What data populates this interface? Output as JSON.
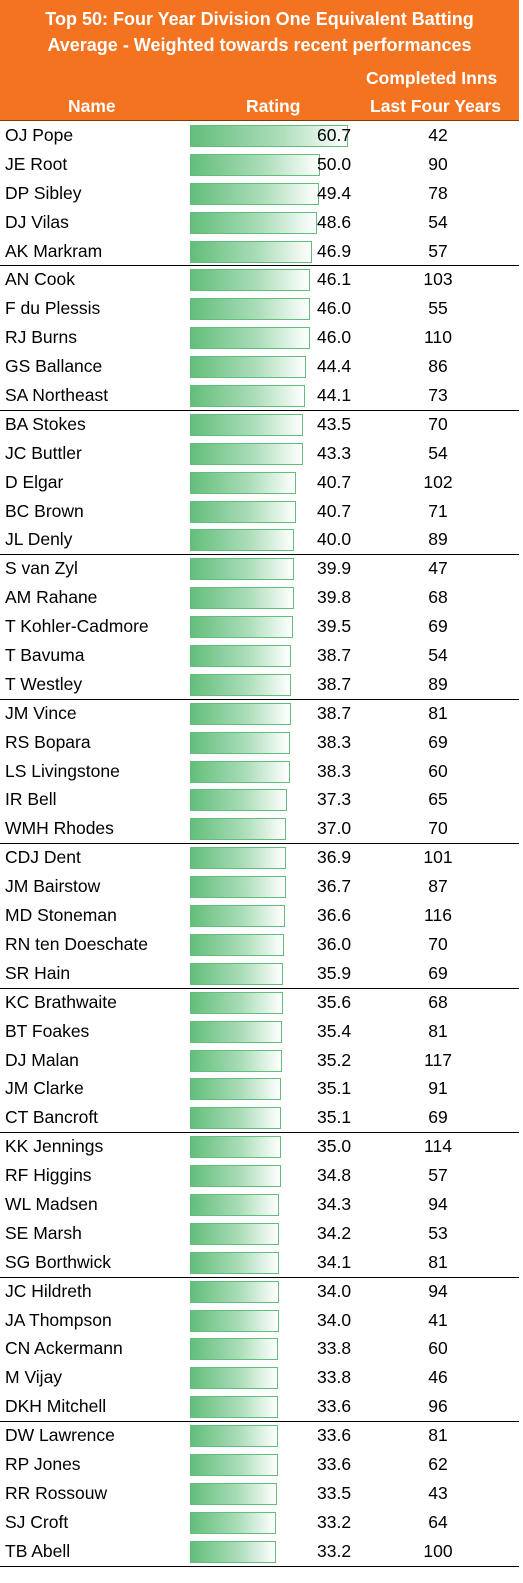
{
  "title_line1": "Top 50: Four Year Division One Equivalent Batting",
  "title_line2": "Average - Weighted towards recent performances",
  "headers": {
    "name": "Name",
    "rating": "Rating",
    "inns_line1": "Completed Inns",
    "inns_line2": "Last Four Years"
  },
  "colors": {
    "header_bg": "#f47320",
    "bar": "#63be7b"
  },
  "chart_data": {
    "type": "table",
    "bar_min": 0,
    "bar_max": 60.7,
    "columns": [
      "Name",
      "Rating",
      "Completed Inns Last Four Years"
    ],
    "rows": [
      {
        "name": "OJ Pope",
        "rating": "60.7",
        "inns": "42"
      },
      {
        "name": "JE Root",
        "rating": "50.0",
        "inns": "90"
      },
      {
        "name": "DP Sibley",
        "rating": "49.4",
        "inns": "78"
      },
      {
        "name": "DJ Vilas",
        "rating": "48.6",
        "inns": "54"
      },
      {
        "name": "AK Markram",
        "rating": "46.9",
        "inns": "57"
      },
      {
        "name": "AN Cook",
        "rating": "46.1",
        "inns": "103"
      },
      {
        "name": "F du Plessis",
        "rating": "46.0",
        "inns": "55"
      },
      {
        "name": "RJ Burns",
        "rating": "46.0",
        "inns": "110"
      },
      {
        "name": "GS Ballance",
        "rating": "44.4",
        "inns": "86"
      },
      {
        "name": "SA Northeast",
        "rating": "44.1",
        "inns": "73"
      },
      {
        "name": "BA Stokes",
        "rating": "43.5",
        "inns": "70"
      },
      {
        "name": "JC Buttler",
        "rating": "43.3",
        "inns": "54"
      },
      {
        "name": "D Elgar",
        "rating": "40.7",
        "inns": "102"
      },
      {
        "name": "BC Brown",
        "rating": "40.7",
        "inns": "71"
      },
      {
        "name": "JL Denly",
        "rating": "40.0",
        "inns": "89"
      },
      {
        "name": "S van Zyl",
        "rating": "39.9",
        "inns": "47"
      },
      {
        "name": "AM Rahane",
        "rating": "39.8",
        "inns": "68"
      },
      {
        "name": "T Kohler-Cadmore",
        "rating": "39.5",
        "inns": "69"
      },
      {
        "name": "T Bavuma",
        "rating": "38.7",
        "inns": "54"
      },
      {
        "name": "T Westley",
        "rating": "38.7",
        "inns": "89"
      },
      {
        "name": "JM Vince",
        "rating": "38.7",
        "inns": "81"
      },
      {
        "name": "RS Bopara",
        "rating": "38.3",
        "inns": "69"
      },
      {
        "name": "LS Livingstone",
        "rating": "38.3",
        "inns": "60"
      },
      {
        "name": "IR Bell",
        "rating": "37.3",
        "inns": "65"
      },
      {
        "name": "WMH Rhodes",
        "rating": "37.0",
        "inns": "70"
      },
      {
        "name": "CDJ Dent",
        "rating": "36.9",
        "inns": "101"
      },
      {
        "name": "JM Bairstow",
        "rating": "36.7",
        "inns": "87"
      },
      {
        "name": "MD Stoneman",
        "rating": "36.6",
        "inns": "116"
      },
      {
        "name": "RN ten Doeschate",
        "rating": "36.0",
        "inns": "70"
      },
      {
        "name": "SR Hain",
        "rating": "35.9",
        "inns": "69"
      },
      {
        "name": "KC Brathwaite",
        "rating": "35.6",
        "inns": "68"
      },
      {
        "name": "BT Foakes",
        "rating": "35.4",
        "inns": "81"
      },
      {
        "name": "DJ Malan",
        "rating": "35.2",
        "inns": "117"
      },
      {
        "name": "JM Clarke",
        "rating": "35.1",
        "inns": "91"
      },
      {
        "name": "CT Bancroft",
        "rating": "35.1",
        "inns": "69"
      },
      {
        "name": "KK Jennings",
        "rating": "35.0",
        "inns": "114"
      },
      {
        "name": "RF Higgins",
        "rating": "34.8",
        "inns": "57"
      },
      {
        "name": "WL Madsen",
        "rating": "34.3",
        "inns": "94"
      },
      {
        "name": "SE Marsh",
        "rating": "34.2",
        "inns": "53"
      },
      {
        "name": "SG Borthwick",
        "rating": "34.1",
        "inns": "81"
      },
      {
        "name": "JC Hildreth",
        "rating": "34.0",
        "inns": "94"
      },
      {
        "name": "JA Thompson",
        "rating": "34.0",
        "inns": "41"
      },
      {
        "name": "CN Ackermann",
        "rating": "33.8",
        "inns": "60"
      },
      {
        "name": "M Vijay",
        "rating": "33.8",
        "inns": "46"
      },
      {
        "name": "DKH Mitchell",
        "rating": "33.6",
        "inns": "96"
      },
      {
        "name": "DW Lawrence",
        "rating": "33.6",
        "inns": "81"
      },
      {
        "name": "RP Jones",
        "rating": "33.6",
        "inns": "62"
      },
      {
        "name": "RR Rossouw",
        "rating": "33.5",
        "inns": "43"
      },
      {
        "name": "SJ Croft",
        "rating": "33.2",
        "inns": "64"
      },
      {
        "name": "TB Abell",
        "rating": "33.2",
        "inns": "100"
      }
    ]
  }
}
